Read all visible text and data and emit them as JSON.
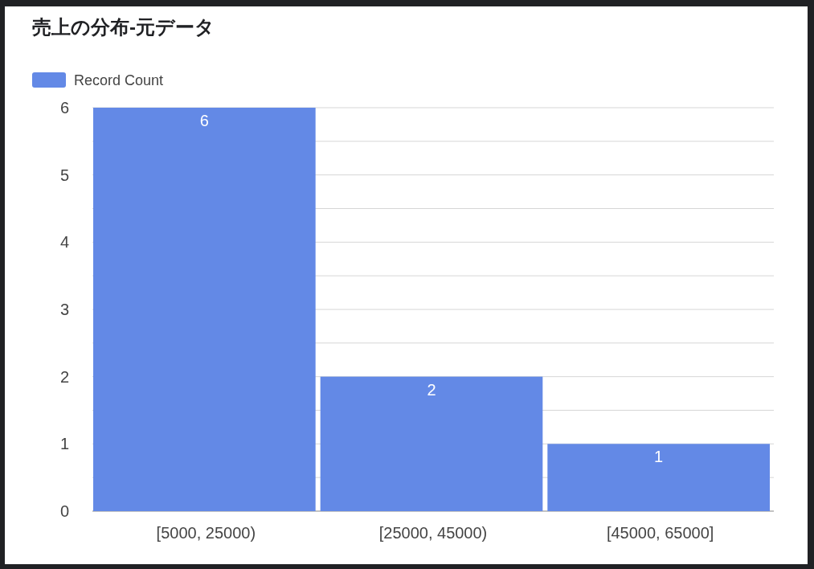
{
  "chart_data": {
    "type": "bar",
    "title": "売上の分布-元データ",
    "categories": [
      "[5000, 25000)",
      "[25000, 45000)",
      "[45000, 65000]"
    ],
    "series": [
      {
        "name": "Record Count",
        "color": "#6389e6",
        "values": [
          6,
          2,
          1
        ]
      }
    ],
    "ylim": [
      0,
      6
    ],
    "yticks": [
      0,
      {
        "value": 0.5,
        "label": null
      },
      1,
      {
        "value": 1.5,
        "label": null
      },
      2,
      {
        "value": 2.5,
        "label": null
      },
      3,
      {
        "value": 3.5,
        "label": null
      },
      4,
      {
        "value": 4.5,
        "label": null
      },
      5,
      {
        "value": 5.5,
        "label": null
      },
      6
    ],
    "grid": "y",
    "legend": "top left",
    "data_labels": true
  }
}
